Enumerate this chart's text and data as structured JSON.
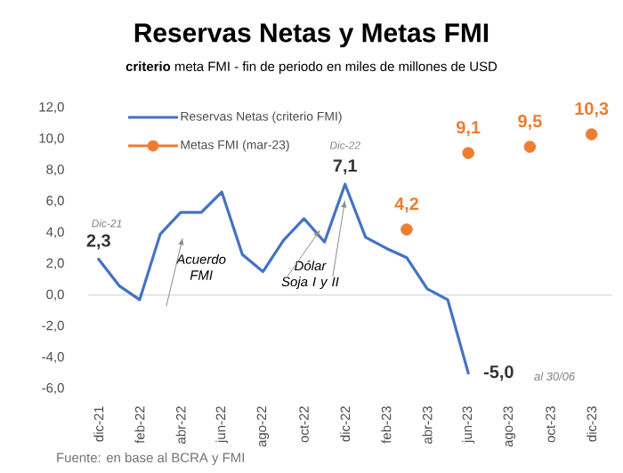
{
  "chart_data": {
    "type": "line",
    "title": "Reservas Netas y Metas FMI",
    "subtitle": "**criterio** meta FMI - fin de periodo en miles de millones de USD",
    "categories": [
      "dic-21",
      null,
      "feb-22",
      null,
      "abr-22",
      null,
      "jun-22",
      null,
      "ago-22",
      null,
      "oct-22",
      null,
      "dic-22",
      null,
      "feb-23",
      null,
      "abr-23",
      null,
      "jun-23",
      null,
      "ago-23",
      null,
      "oct-23",
      null,
      "dic-23"
    ],
    "series": [
      {
        "name": "Reservas Netas (criterio FMI)",
        "color": "#4472c4",
        "marker": "none",
        "values": [
          2.3,
          0.6,
          -0.3,
          3.9,
          5.3,
          5.3,
          6.6,
          2.6,
          1.5,
          3.5,
          4.9,
          3.4,
          7.1,
          3.7,
          3.0,
          2.4,
          0.4,
          -0.3,
          -5.0,
          null,
          null,
          null,
          null,
          null,
          null
        ],
        "value_labels": [
          "2,3",
          null,
          null,
          null,
          null,
          null,
          null,
          null,
          null,
          null,
          null,
          null,
          "7,1",
          null,
          null,
          null,
          null,
          null,
          "-5,0",
          null,
          null,
          null,
          null,
          null,
          null
        ]
      },
      {
        "name": "Metas FMI (mar-23)",
        "type": "scatter",
        "color": "#ed7d31",
        "marker": "circle",
        "values": [
          null,
          null,
          null,
          null,
          null,
          null,
          null,
          null,
          null,
          null,
          null,
          null,
          null,
          null,
          null,
          4.2,
          null,
          null,
          9.1,
          null,
          null,
          9.5,
          null,
          null,
          10.3
        ],
        "value_labels": [
          null,
          null,
          null,
          null,
          null,
          null,
          null,
          null,
          null,
          null,
          null,
          null,
          null,
          null,
          null,
          "4,2",
          null,
          null,
          "9,1",
          null,
          null,
          "9,5",
          null,
          null,
          "10,3"
        ]
      }
    ],
    "ylim": [
      -6,
      12
    ],
    "yticks": [
      {
        "value": -6,
        "label": "-6,0"
      },
      {
        "value": -4,
        "label": "-4,0"
      },
      {
        "value": -2,
        "label": "-2,0"
      },
      {
        "value": 0,
        "label": "0,0"
      },
      {
        "value": 2,
        "label": "2,0"
      },
      {
        "value": 4,
        "label": "4,0"
      },
      {
        "value": 6,
        "label": "6,0"
      },
      {
        "value": 8,
        "label": "8,0"
      },
      {
        "value": 10,
        "label": "10,0"
      },
      {
        "value": 12,
        "label": "12,0"
      }
    ],
    "legend": "top left",
    "annotations": [
      "Dic-21",
      "Dic-22",
      "*Acuerdo FMI*",
      {
        "text": "*Dólar Soja I y II*",
        "x": "dic-22",
        "y": 6.1
      },
      "*al 30/06*",
      "Fuente: en base al BCRA y FMI"
    ]
  }
}
